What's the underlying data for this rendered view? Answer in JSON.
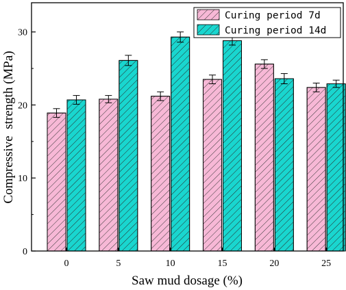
{
  "chart_data": {
    "type": "bar",
    "categories": [
      "0",
      "5",
      "10",
      "15",
      "20",
      "25"
    ],
    "series": [
      {
        "name": "Curing period 7d",
        "values": [
          18.9,
          20.8,
          21.2,
          23.5,
          25.6,
          22.4
        ],
        "errors": [
          0.6,
          0.5,
          0.6,
          0.6,
          0.6,
          0.6
        ],
        "color": "#f7b8d6",
        "hatch": "#3a3a3a"
      },
      {
        "name": "Curing period 14d",
        "values": [
          20.7,
          26.1,
          29.3,
          28.8,
          23.6,
          22.9
        ],
        "errors": [
          0.6,
          0.7,
          0.7,
          0.6,
          0.7,
          0.5
        ],
        "color": "#19d6cf",
        "hatch": "#2a2a2a"
      }
    ],
    "xlabel": "Saw mud dosage (%)",
    "ylabel": "Compressive  strength (MPa)",
    "ylim": [
      0,
      34
    ],
    "yticks": [
      0,
      10,
      20,
      30
    ],
    "grid": false,
    "legend_position": "top-right"
  }
}
